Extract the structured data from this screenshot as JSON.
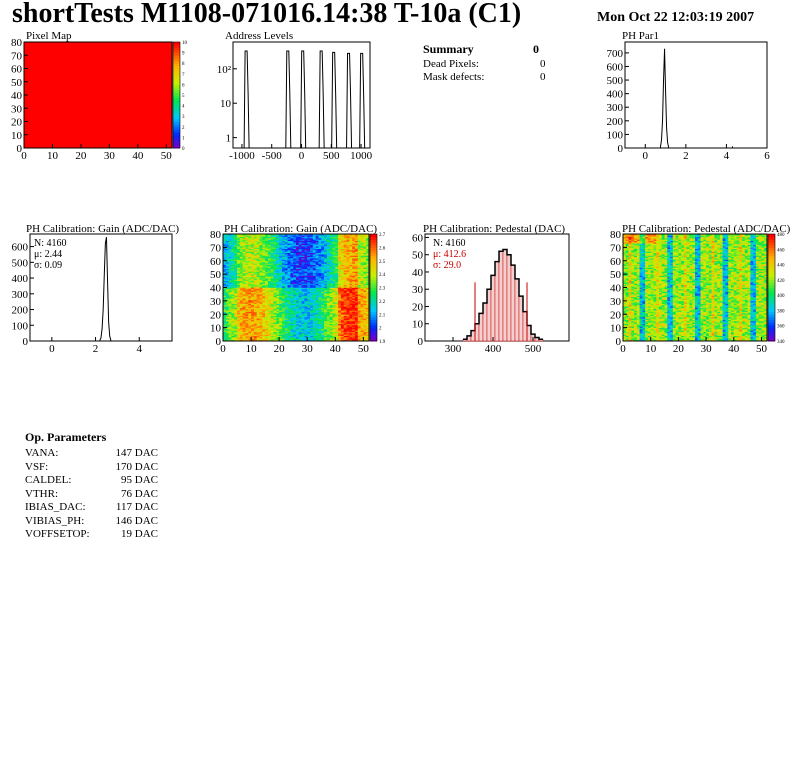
{
  "header": {
    "title": "shortTests M1108-071016.14:38 T-10a (C1)",
    "date": "Mon Oct 22 12:03:19 2007"
  },
  "panels": {
    "pixel_map": {
      "title": "Pixel Map"
    },
    "address_levels": {
      "title": "Address Levels"
    },
    "ph_par1": {
      "title": "PH Par1"
    },
    "gain_hist": {
      "title": "PH Calibration: Gain (ADC/DAC)",
      "stats": {
        "n": "N: 4160",
        "mu": "μ: 2.44",
        "sigma": "σ: 0.09"
      }
    },
    "gain_map": {
      "title": "PH Calibration: Gain (ADC/DAC)"
    },
    "pedestal_hist": {
      "title": "PH Calibration: Pedestal (DAC)",
      "stats": {
        "n": "N: 4160",
        "mu": "μ: 412.6",
        "sigma": "σ: 29.0"
      }
    },
    "pedestal_map": {
      "title": "PH Calibration: Pedestal (ADC/DAC)"
    }
  },
  "summary": {
    "title": "Summary",
    "title_value": "0",
    "rows": [
      {
        "label": "Dead Pixels:",
        "value": "0"
      },
      {
        "label": "Mask defects:",
        "value": "0"
      }
    ]
  },
  "op_parameters": {
    "title": "Op. Parameters",
    "rows": [
      {
        "label": "VANA:",
        "value": "147 DAC"
      },
      {
        "label": "VSF:",
        "value": "170 DAC"
      },
      {
        "label": "CALDEL:",
        "value": "95 DAC"
      },
      {
        "label": "VTHR:",
        "value": "76 DAC"
      },
      {
        "label": "IBIAS_DAC:",
        "value": "117 DAC"
      },
      {
        "label": "VIBIAS_PH:",
        "value": "146 DAC"
      },
      {
        "label": "VOFFSETOP:",
        "value": "19 DAC"
      }
    ]
  },
  "colors": {
    "pixel_fill": "#ff0000",
    "pedestal_fill": "#cc0000",
    "pedestal_stats": "#cc0000"
  },
  "chart_data": [
    {
      "id": "pixel_map",
      "type": "heatmap",
      "title": "Pixel Map",
      "xlim": [
        0,
        52
      ],
      "ylim": [
        0,
        80
      ],
      "x_ticks": [
        0,
        10,
        20,
        30,
        40,
        50
      ],
      "y_ticks": [
        0,
        10,
        20,
        30,
        40,
        50,
        60,
        70,
        80
      ],
      "z_ticks": [
        "0",
        "1",
        "2",
        "3",
        "4",
        "5",
        "6",
        "7",
        "8",
        "9",
        "10"
      ],
      "uniform_value": 10
    },
    {
      "id": "address_levels",
      "type": "line",
      "title": "Address Levels",
      "y_log": true,
      "xlim": [
        -1150,
        1150
      ],
      "x_ticks": [
        -1000,
        -500,
        0,
        500,
        1000
      ],
      "y_ticks": [
        "1",
        "10",
        "10²"
      ],
      "peaks": [
        {
          "x": -930,
          "y": 330
        },
        {
          "x": -230,
          "y": 330
        },
        {
          "x": 20,
          "y": 330
        },
        {
          "x": 330,
          "y": 330
        },
        {
          "x": 540,
          "y": 300
        },
        {
          "x": 790,
          "y": 280
        },
        {
          "x": 1010,
          "y": 280
        }
      ]
    },
    {
      "id": "ph_par1",
      "type": "line",
      "title": "PH Par1",
      "xlim": [
        -1,
        6
      ],
      "ylim": [
        0,
        780
      ],
      "x_ticks": [
        0,
        2,
        4,
        6
      ],
      "y_ticks": [
        0,
        100,
        200,
        300,
        400,
        500,
        600,
        700
      ],
      "x": [
        0.75,
        0.8,
        0.85,
        0.9,
        0.95,
        1.0,
        1.05,
        1.1,
        1.15
      ],
      "values": [
        10,
        60,
        200,
        500,
        730,
        420,
        150,
        40,
        5
      ],
      "outliers": [
        {
          "x": 4.3,
          "y": 5
        }
      ]
    },
    {
      "id": "gain_hist",
      "type": "line",
      "title": "PH Calibration: Gain (ADC/DAC)",
      "xlim": [
        -1,
        5.5
      ],
      "ylim": [
        0,
        680
      ],
      "x_ticks": [
        0,
        2,
        4
      ],
      "y_ticks": [
        0,
        100,
        200,
        300,
        400,
        500,
        600
      ],
      "x": [
        2.2,
        2.25,
        2.3,
        2.35,
        2.4,
        2.45,
        2.5,
        2.55,
        2.6,
        2.65,
        2.7
      ],
      "values": [
        5,
        20,
        80,
        200,
        420,
        620,
        660,
        380,
        120,
        30,
        5
      ]
    },
    {
      "id": "gain_map",
      "type": "heatmap",
      "title": "PH Calibration: Gain (ADC/DAC)",
      "xlim": [
        0,
        52
      ],
      "ylim": [
        0,
        80
      ],
      "x_ticks": [
        0,
        10,
        20,
        30,
        40,
        50
      ],
      "y_ticks": [
        0,
        10,
        20,
        30,
        40,
        50,
        60,
        70,
        80
      ],
      "z_ticks": [
        "1.9",
        "2",
        "2.1",
        "2.2",
        "2.3",
        "2.4",
        "2.5",
        "2.6",
        "2.7"
      ],
      "zlim": [
        1.9,
        2.7
      ]
    },
    {
      "id": "pedestal_hist",
      "type": "bar",
      "title": "PH Calibration: Pedestal (DAC)",
      "xlim": [
        230,
        590
      ],
      "ylim": [
        0,
        62
      ],
      "x_ticks": [
        300,
        400,
        500
      ],
      "y_ticks": [
        0,
        10,
        20,
        30,
        40,
        50,
        60
      ],
      "x": [
        330,
        340,
        350,
        360,
        370,
        380,
        390,
        400,
        410,
        420,
        430,
        440,
        450,
        460,
        470,
        480,
        490,
        500,
        510,
        520
      ],
      "values": [
        1,
        3,
        6,
        10,
        16,
        22,
        30,
        38,
        46,
        52,
        53,
        50,
        44,
        36,
        26,
        17,
        9,
        4,
        2,
        1
      ],
      "markers": [
        355,
        485
      ]
    },
    {
      "id": "pedestal_map",
      "type": "heatmap",
      "title": "PH Calibration: Pedestal (ADC/DAC)",
      "xlim": [
        0,
        52
      ],
      "ylim": [
        0,
        80
      ],
      "x_ticks": [
        0,
        10,
        20,
        30,
        40,
        50
      ],
      "y_ticks": [
        0,
        10,
        20,
        30,
        40,
        50,
        60,
        70,
        80
      ],
      "z_ticks": [
        "340",
        "360",
        "380",
        "400",
        "420",
        "440",
        "460",
        "480"
      ],
      "zlim": [
        330,
        490
      ]
    }
  ]
}
